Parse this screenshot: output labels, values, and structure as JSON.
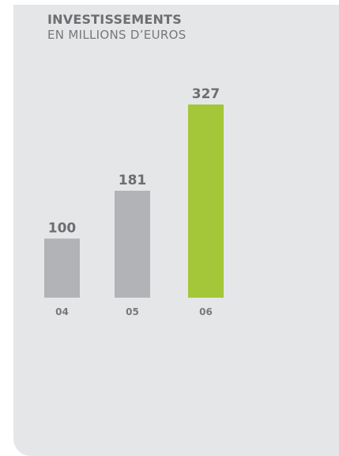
{
  "chart_data": {
    "type": "bar",
    "title": "INVESTISSEMENTS",
    "subtitle": "EN MILLIONS D’EUROS",
    "categories": [
      "04",
      "05",
      "06"
    ],
    "values": [
      100,
      181,
      327
    ],
    "value_labels": [
      "100",
      "181",
      "327"
    ],
    "ylim": [
      0,
      327
    ],
    "grid": false,
    "colors": {
      "default_bar": "#b1b3b6",
      "highlight_bar": "#a4c639",
      "panel_background": "#e5e6e8",
      "text": "#6d6e71"
    },
    "highlight_index": 2
  }
}
